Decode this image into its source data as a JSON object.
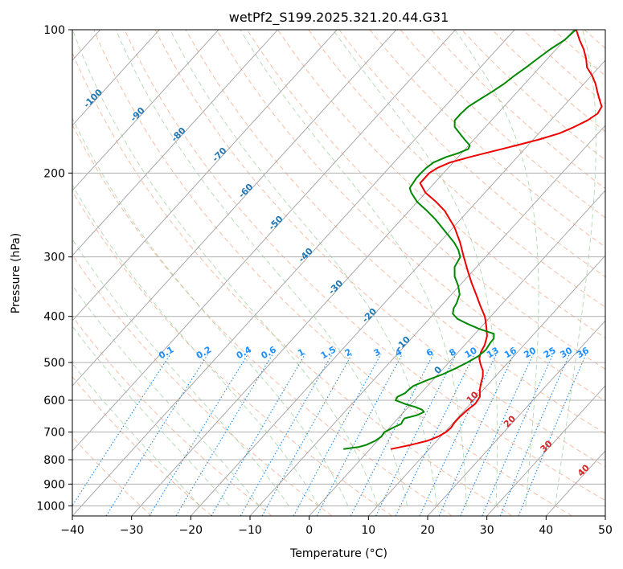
{
  "chart_data": {
    "type": "line",
    "title": "wetPf2_S199.2025.321.20.44.G31",
    "xlabel": "Temperature (°C)",
    "ylabel": "Pressure (hPa)",
    "xlim": [
      -40,
      50
    ],
    "ylim": [
      1050,
      100
    ],
    "y_scale": "log",
    "skew": true,
    "grid": true,
    "x_ticks": [
      -40,
      -30,
      -20,
      -10,
      0,
      10,
      20,
      30,
      40,
      50
    ],
    "y_ticks": [
      100,
      200,
      300,
      400,
      500,
      600,
      700,
      800,
      900,
      1000
    ],
    "isotherm_labels": [
      "-100",
      "-90",
      "-80",
      "-70",
      "-60",
      "-50",
      "-40",
      "-30",
      "-20",
      "-10",
      "0",
      "10",
      "20",
      "30",
      "40"
    ],
    "mixing_ratio_labels": [
      "0.1",
      "0.2",
      "0.4",
      "0.6",
      "1",
      "1.5",
      "2",
      "3",
      "4",
      "6",
      "8",
      "10",
      "13",
      "16",
      "20",
      "25",
      "30",
      "36"
    ],
    "series": [
      {
        "role": "temperature",
        "color": "#ee0000",
        "points": [
          [
            760,
            3.5
          ],
          [
            745,
            6.2
          ],
          [
            730,
            8.4
          ],
          [
            715,
            9.6
          ],
          [
            700,
            10.2
          ],
          [
            685,
            10.4
          ],
          [
            670,
            10.2
          ],
          [
            650,
            10.2
          ],
          [
            630,
            10.4
          ],
          [
            610,
            10.8
          ],
          [
            590,
            10.5
          ],
          [
            570,
            9.4
          ],
          [
            550,
            8.5
          ],
          [
            535,
            7.9
          ],
          [
            520,
            7.0
          ],
          [
            505,
            5.7
          ],
          [
            490,
            4.5
          ],
          [
            475,
            3.8
          ],
          [
            460,
            3.4
          ],
          [
            440,
            2.4
          ],
          [
            420,
            0.8
          ],
          [
            400,
            -1.0
          ],
          [
            380,
            -3.4
          ],
          [
            360,
            -5.8
          ],
          [
            340,
            -8.4
          ],
          [
            320,
            -11.0
          ],
          [
            300,
            -13.7
          ],
          [
            280,
            -16.5
          ],
          [
            260,
            -19.8
          ],
          [
            240,
            -24.0
          ],
          [
            230,
            -26.8
          ],
          [
            220,
            -30.0
          ],
          [
            210,
            -32.4
          ],
          [
            200,
            -32.4
          ],
          [
            195,
            -31.8
          ],
          [
            190,
            -30.5
          ],
          [
            185,
            -28.0
          ],
          [
            180,
            -25.0
          ],
          [
            175,
            -22.0
          ],
          [
            170,
            -19.0
          ],
          [
            165,
            -16.5
          ],
          [
            160,
            -15.0
          ],
          [
            155,
            -13.8
          ],
          [
            150,
            -13.1
          ],
          [
            145,
            -13.5
          ],
          [
            140,
            -15.0
          ],
          [
            135,
            -16.5
          ],
          [
            130,
            -18.0
          ],
          [
            125,
            -19.8
          ],
          [
            120,
            -22.0
          ],
          [
            115,
            -23.5
          ],
          [
            110,
            -25.3
          ],
          [
            105,
            -27.5
          ],
          [
            100,
            -29.6
          ]
        ]
      },
      {
        "role": "dewpoint",
        "color": "#008800",
        "points": [
          [
            760,
            -4.5
          ],
          [
            752,
            -2.2
          ],
          [
            745,
            -1.3
          ],
          [
            730,
            -0.4
          ],
          [
            715,
            0.0
          ],
          [
            700,
            -0.2
          ],
          [
            685,
            0.6
          ],
          [
            672,
            1.4
          ],
          [
            665,
            1.2
          ],
          [
            655,
            1.1
          ],
          [
            645,
            2.7
          ],
          [
            635,
            3.4
          ],
          [
            628,
            2.7
          ],
          [
            620,
            1.2
          ],
          [
            612,
            -0.8
          ],
          [
            600,
            -3.2
          ],
          [
            590,
            -3.4
          ],
          [
            580,
            -2.7
          ],
          [
            570,
            -2.6
          ],
          [
            560,
            -2.4
          ],
          [
            545,
            -1.0
          ],
          [
            530,
            0.7
          ],
          [
            515,
            2.0
          ],
          [
            500,
            3.1
          ],
          [
            485,
            4.0
          ],
          [
            470,
            4.3
          ],
          [
            455,
            4.0
          ],
          [
            445,
            3.9
          ],
          [
            435,
            3.2
          ],
          [
            425,
            0.0
          ],
          [
            415,
            -2.7
          ],
          [
            405,
            -5.2
          ],
          [
            395,
            -6.8
          ],
          [
            385,
            -7.5
          ],
          [
            375,
            -7.8
          ],
          [
            360,
            -8.6
          ],
          [
            345,
            -10.2
          ],
          [
            330,
            -12.2
          ],
          [
            315,
            -13.7
          ],
          [
            300,
            -14.3
          ],
          [
            290,
            -15.7
          ],
          [
            280,
            -17.5
          ],
          [
            265,
            -20.8
          ],
          [
            250,
            -24.3
          ],
          [
            240,
            -27.0
          ],
          [
            230,
            -30.0
          ],
          [
            220,
            -32.4
          ],
          [
            215,
            -33.4
          ],
          [
            205,
            -33.8
          ],
          [
            200,
            -33.8
          ],
          [
            195,
            -33.7
          ],
          [
            190,
            -33.3
          ],
          [
            185,
            -32.0
          ],
          [
            182,
            -30.7
          ],
          [
            178,
            -29.5
          ],
          [
            175,
            -29.8
          ],
          [
            170,
            -31.6
          ],
          [
            165,
            -33.4
          ],
          [
            160,
            -35.2
          ],
          [
            155,
            -36.2
          ],
          [
            150,
            -36.2
          ],
          [
            145,
            -36.0
          ],
          [
            140,
            -35.2
          ],
          [
            135,
            -34.3
          ],
          [
            130,
            -33.5
          ],
          [
            125,
            -33.0
          ],
          [
            120,
            -32.3
          ],
          [
            115,
            -31.7
          ],
          [
            110,
            -31.0
          ],
          [
            105,
            -30.0
          ],
          [
            100,
            -29.7
          ]
        ]
      }
    ]
  }
}
